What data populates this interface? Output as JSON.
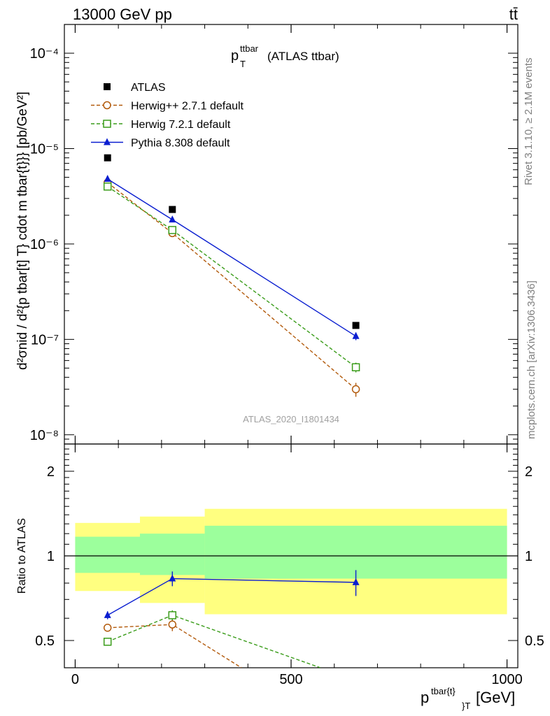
{
  "header": {
    "left": "13000 GeV pp",
    "right": "tt̄"
  },
  "main_panel": {
    "title_main": "p",
    "title_sup": "ttbar",
    "title_sub": "T",
    "title_rest": "(ATLAS ttbar)",
    "analysis_id": "ATLAS_2020_I1801434",
    "ylabel": "d²σnid / d²{p tbar[t] T} cdot m tbar{t}}} [pb/GeV²]",
    "ytick_labels": [
      "10⁻⁸",
      "10⁻⁷",
      "10⁻⁶",
      "10⁻⁵",
      "10⁻⁴"
    ]
  },
  "ratio_panel": {
    "ylabel": "Ratio to ATLAS",
    "ytick_labels": [
      "0.5",
      "1",
      "2"
    ]
  },
  "xaxis": {
    "label": "p",
    "label_sup": "tbar{t}",
    "label_sub": "}T",
    "label_unit": "[GeV]",
    "tick_labels": [
      "0",
      "500",
      "1000"
    ]
  },
  "side_labels": {
    "rivet": "Rivet 3.1.10, ≥ 2.1M events",
    "mcplots": "mcplots.cern.ch [arXiv:1306.3436]"
  },
  "legend": [
    {
      "label": "ATLAS",
      "color": "#000000",
      "marker": "square-filled"
    },
    {
      "label": "Herwig++ 2.7.1 default",
      "color": "#b25a0c",
      "marker": "circle-open"
    },
    {
      "label": "Herwig 7.2.1 default",
      "color": "#3a9c1a",
      "marker": "square-open"
    },
    {
      "label": "Pythia 8.308 default",
      "color": "#0a1ed0",
      "marker": "triangle-filled"
    }
  ],
  "chart_data": {
    "type": "scatter",
    "xlabel": "p_T^{tbar{t}} [GeV]",
    "xlim": [
      -25,
      1025
    ],
    "yscale": "log",
    "ylim": [
      8e-09,
      0.0002
    ],
    "bins": [
      [
        0,
        150
      ],
      [
        150,
        300
      ],
      [
        300,
        1000
      ]
    ],
    "x": [
      75,
      225,
      650
    ],
    "series": [
      {
        "name": "ATLAS",
        "values": [
          8e-06,
          2.3e-06,
          1.4e-07
        ]
      },
      {
        "name": "Herwig++ 2.7.1 default",
        "values": [
          4.4e-06,
          1.3e-06,
          3e-08
        ],
        "errors": [
          1e-07,
          5e-08,
          5e-09
        ]
      },
      {
        "name": "Herwig 7.2.1 default",
        "values": [
          4e-06,
          1.4e-06,
          5.1e-08
        ],
        "errors": [
          1e-07,
          5e-08,
          6e-09
        ]
      },
      {
        "name": "Pythia 8.308 default",
        "values": [
          4.8e-06,
          1.8e-06,
          1.08e-07
        ],
        "errors": [
          1e-07,
          5e-08,
          1e-08
        ]
      }
    ],
    "ratio": {
      "ylabel": "Ratio to ATLAS",
      "yscale": "log",
      "ylim": [
        0.4,
        2.5
      ],
      "band_inner": [
        [
          0.87,
          1.17
        ],
        [
          0.855,
          1.2
        ],
        [
          0.83,
          1.28
        ]
      ],
      "band_outer": [
        [
          0.75,
          1.31
        ],
        [
          0.68,
          1.38
        ],
        [
          0.62,
          1.47
        ]
      ],
      "series": [
        {
          "name": "Herwig++ 2.7.1 default",
          "x": [
            75,
            225,
            385
          ],
          "values": [
            0.555,
            0.57,
            0.4
          ],
          "errors": [
            0.01,
            0.03,
            0
          ]
        },
        {
          "name": "Herwig 7.2.1 default",
          "x": [
            75,
            225,
            568
          ],
          "values": [
            0.495,
            0.615,
            0.4
          ],
          "errors": [
            0.01,
            0.025,
            0
          ]
        },
        {
          "name": "Pythia 8.308 default",
          "x": [
            75,
            225,
            650
          ],
          "values": [
            0.615,
            0.83,
            0.805
          ],
          "errors": [
            0.02,
            0.05,
            0.085
          ]
        }
      ]
    }
  }
}
